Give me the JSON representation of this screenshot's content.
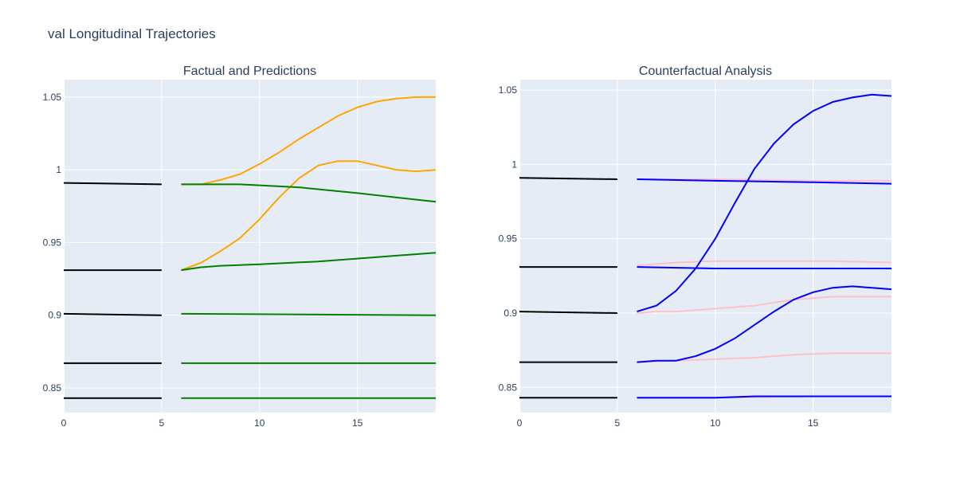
{
  "title": "val Longitudinal Trajectories",
  "chart_data": [
    {
      "type": "line",
      "title": "Factual and Predictions",
      "xlim": [
        0,
        19
      ],
      "ylim": [
        0.833,
        1.062
      ],
      "x_ticks": [
        0,
        5,
        10,
        15
      ],
      "y_ticks": [
        0.85,
        0.9,
        0.95,
        1,
        1.05
      ],
      "y_tick_labels": [
        "0.85",
        "0.9",
        "0.95",
        "1",
        "1.05"
      ],
      "grid": true,
      "series": [
        {
          "color": "#000000",
          "x": [
            0,
            5
          ],
          "y": [
            0.991,
            0.99
          ]
        },
        {
          "color": "#000000",
          "x": [
            0,
            5
          ],
          "y": [
            0.931,
            0.931
          ]
        },
        {
          "color": "#000000",
          "x": [
            0,
            5
          ],
          "y": [
            0.901,
            0.9
          ]
        },
        {
          "color": "#000000",
          "x": [
            0,
            5
          ],
          "y": [
            0.867,
            0.867
          ]
        },
        {
          "color": "#000000",
          "x": [
            0,
            5
          ],
          "y": [
            0.843,
            0.843
          ]
        },
        {
          "color": "#ffa500",
          "x": [
            6,
            7,
            8,
            9,
            10,
            11,
            12,
            13,
            14,
            15,
            16,
            17,
            18,
            19
          ],
          "y": [
            0.99,
            0.99,
            0.993,
            0.997,
            1.004,
            1.012,
            1.021,
            1.029,
            1.037,
            1.043,
            1.047,
            1.049,
            1.05,
            1.05
          ]
        },
        {
          "color": "#ffa500",
          "x": [
            6,
            7,
            8,
            9,
            10,
            11,
            12,
            13,
            14,
            15,
            16,
            17,
            18,
            19
          ],
          "y": [
            0.931,
            0.936,
            0.944,
            0.953,
            0.966,
            0.981,
            0.994,
            1.003,
            1.006,
            1.006,
            1.003,
            1.0,
            0.999,
            1.0
          ]
        },
        {
          "color": "#008000",
          "x": [
            6,
            9,
            12,
            15,
            19
          ],
          "y": [
            0.99,
            0.99,
            0.988,
            0.984,
            0.978
          ]
        },
        {
          "color": "#008000",
          "x": [
            6,
            7,
            8,
            10,
            13,
            16,
            19
          ],
          "y": [
            0.931,
            0.933,
            0.934,
            0.935,
            0.937,
            0.94,
            0.943
          ]
        },
        {
          "color": "#008000",
          "x": [
            6,
            19
          ],
          "y": [
            0.901,
            0.9
          ]
        },
        {
          "color": "#008000",
          "x": [
            6,
            19
          ],
          "y": [
            0.867,
            0.867
          ]
        },
        {
          "color": "#008000",
          "x": [
            6,
            19
          ],
          "y": [
            0.843,
            0.843
          ]
        }
      ]
    },
    {
      "type": "line",
      "title": "Counterfactual Analysis",
      "xlim": [
        0,
        19
      ],
      "ylim": [
        0.833,
        1.057
      ],
      "x_ticks": [
        0,
        5,
        10,
        15
      ],
      "y_ticks": [
        0.85,
        0.9,
        0.95,
        1,
        1.05
      ],
      "y_tick_labels": [
        "0.85",
        "0.9",
        "0.95",
        "1",
        "1.05"
      ],
      "grid": true,
      "series": [
        {
          "color": "#000000",
          "x": [
            0,
            5
          ],
          "y": [
            0.991,
            0.99
          ]
        },
        {
          "color": "#000000",
          "x": [
            0,
            5
          ],
          "y": [
            0.931,
            0.931
          ]
        },
        {
          "color": "#000000",
          "x": [
            0,
            5
          ],
          "y": [
            0.901,
            0.9
          ]
        },
        {
          "color": "#000000",
          "x": [
            0,
            5
          ],
          "y": [
            0.867,
            0.867
          ]
        },
        {
          "color": "#000000",
          "x": [
            0,
            5
          ],
          "y": [
            0.843,
            0.843
          ]
        },
        {
          "color": "#ffc0cb",
          "x": [
            6,
            10,
            15,
            19
          ],
          "y": [
            0.99,
            0.99,
            0.989,
            0.989
          ]
        },
        {
          "color": "#ffc0cb",
          "x": [
            6,
            7,
            8,
            10,
            13,
            16,
            19
          ],
          "y": [
            0.932,
            0.933,
            0.934,
            0.935,
            0.935,
            0.935,
            0.934
          ]
        },
        {
          "color": "#ffc0cb",
          "x": [
            6,
            7,
            8,
            9,
            10,
            11,
            12,
            13,
            14,
            15,
            16,
            17,
            18,
            19
          ],
          "y": [
            0.9,
            0.901,
            0.901,
            0.902,
            0.903,
            0.904,
            0.905,
            0.907,
            0.909,
            0.91,
            0.911,
            0.911,
            0.911,
            0.911
          ]
        },
        {
          "color": "#ffc0cb",
          "x": [
            6,
            8,
            10,
            12,
            14,
            16,
            18,
            19
          ],
          "y": [
            0.867,
            0.868,
            0.869,
            0.87,
            0.872,
            0.873,
            0.873,
            0.873
          ]
        },
        {
          "color": "#ffc0cb",
          "x": [
            6,
            10,
            15,
            19
          ],
          "y": [
            0.843,
            0.843,
            0.844,
            0.844
          ]
        },
        {
          "color": "#0000ff",
          "x": [
            6,
            10,
            15,
            19
          ],
          "y": [
            0.99,
            0.989,
            0.988,
            0.987
          ]
        },
        {
          "color": "#0000ff",
          "x": [
            6,
            10,
            15,
            19
          ],
          "y": [
            0.931,
            0.93,
            0.93,
            0.93
          ]
        },
        {
          "color": "#0000ff",
          "x": [
            6,
            7,
            8,
            9,
            10,
            11,
            12,
            13,
            14,
            15,
            16,
            17,
            18,
            19
          ],
          "y": [
            0.901,
            0.905,
            0.915,
            0.93,
            0.95,
            0.974,
            0.997,
            1.014,
            1.027,
            1.036,
            1.042,
            1.045,
            1.047,
            1.046
          ]
        },
        {
          "color": "#0000ff",
          "x": [
            6,
            7,
            8,
            9,
            10,
            11,
            12,
            13,
            14,
            15,
            16,
            17,
            18,
            19
          ],
          "y": [
            0.867,
            0.868,
            0.868,
            0.871,
            0.876,
            0.883,
            0.892,
            0.901,
            0.909,
            0.914,
            0.917,
            0.918,
            0.917,
            0.916
          ]
        },
        {
          "color": "#0000ff",
          "x": [
            6,
            8,
            10,
            12,
            14,
            16,
            18,
            19
          ],
          "y": [
            0.843,
            0.843,
            0.843,
            0.844,
            0.844,
            0.844,
            0.844,
            0.844
          ]
        }
      ]
    }
  ]
}
